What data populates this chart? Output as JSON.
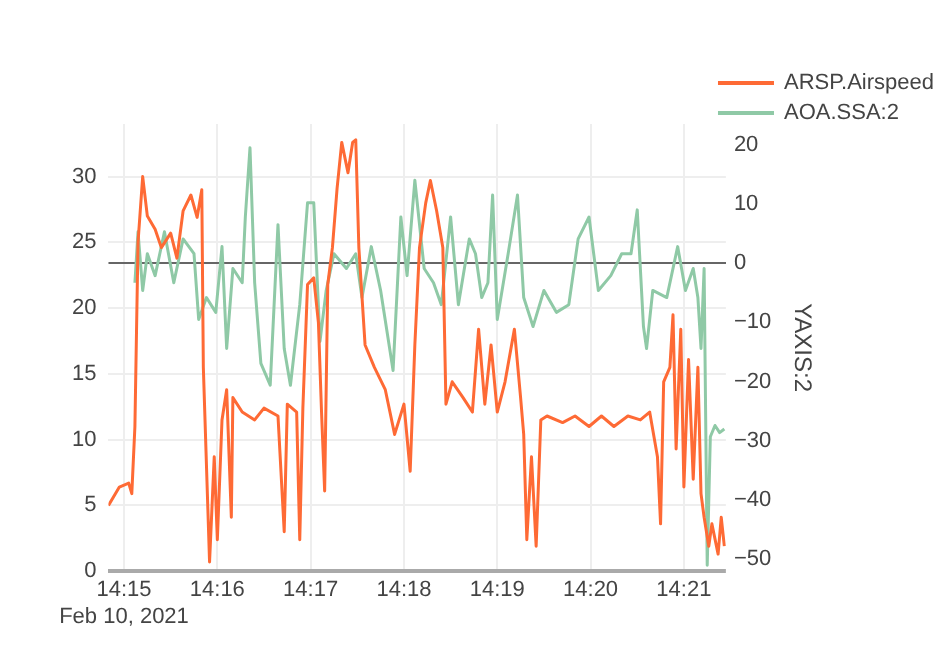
{
  "chart_data": {
    "type": "line",
    "y2label": "YAXIS:2",
    "xlim": [
      "2021-02-10T14:14:50",
      "2021-02-10T14:21:27"
    ],
    "xticks": [
      {
        "value": "2021-02-10T14:15",
        "label": "14:15\nFeb 10, 2021"
      },
      {
        "value": "2021-02-10T14:16",
        "label": "14:16"
      },
      {
        "value": "2021-02-10T14:17",
        "label": "14:17"
      },
      {
        "value": "2021-02-10T14:18",
        "label": "14:18"
      },
      {
        "value": "2021-02-10T14:19",
        "label": "14:19"
      },
      {
        "value": "2021-02-10T14:20",
        "label": "14:20"
      },
      {
        "value": "2021-02-10T14:21",
        "label": "14:21"
      }
    ],
    "ylim": [
      0,
      34
    ],
    "yticks": [
      0,
      5,
      10,
      15,
      20,
      25,
      30
    ],
    "y2lim": [
      -52,
      23.5
    ],
    "y2ticks": [
      -50,
      -40,
      -30,
      -20,
      -10,
      0,
      10,
      20
    ],
    "grid": true,
    "legend": "top right",
    "marker": "none",
    "line_style": "solid",
    "series": [
      {
        "name": "ARSP.Airspeed",
        "color": "#fe6a35",
        "x": [
          "2021-02-10T14:14:50",
          "2021-02-10T14:14:57",
          "2021-02-10T14:15:03",
          "2021-02-10T14:15:05",
          "2021-02-10T14:15:07",
          "2021-02-10T14:15:09",
          "2021-02-10T14:15:12",
          "2021-02-10T14:15:15",
          "2021-02-10T14:15:20",
          "2021-02-10T14:15:24",
          "2021-02-10T14:15:30",
          "2021-02-10T14:15:34",
          "2021-02-10T14:15:38",
          "2021-02-10T14:15:43",
          "2021-02-10T14:15:47",
          "2021-02-10T14:15:50",
          "2021-02-10T14:15:51",
          "2021-02-10T14:15:55",
          "2021-02-10T14:15:58",
          "2021-02-10T14:16:00",
          "2021-02-10T14:16:03",
          "2021-02-10T14:16:06",
          "2021-02-10T14:16:09",
          "2021-02-10T14:16:10",
          "2021-02-10T14:16:16",
          "2021-02-10T14:16:24",
          "2021-02-10T14:16:30",
          "2021-02-10T14:16:39",
          "2021-02-10T14:16:43",
          "2021-02-10T14:16:45",
          "2021-02-10T14:16:51",
          "2021-02-10T14:16:53",
          "2021-02-10T14:16:55",
          "2021-02-10T14:16:58",
          "2021-02-10T14:17:02",
          "2021-02-10T14:17:05",
          "2021-02-10T14:17:07",
          "2021-02-10T14:17:09",
          "2021-02-10T14:17:11",
          "2021-02-10T14:17:14",
          "2021-02-10T14:17:17",
          "2021-02-10T14:17:20",
          "2021-02-10T14:17:24",
          "2021-02-10T14:17:27",
          "2021-02-10T14:17:29",
          "2021-02-10T14:17:31",
          "2021-02-10T14:17:35",
          "2021-02-10T14:17:41",
          "2021-02-10T14:17:48",
          "2021-02-10T14:17:54",
          "2021-02-10T14:18:00",
          "2021-02-10T14:18:04",
          "2021-02-10T14:18:07",
          "2021-02-10T14:18:10",
          "2021-02-10T14:18:14",
          "2021-02-10T14:18:17",
          "2021-02-10T14:18:21",
          "2021-02-10T14:18:25",
          "2021-02-10T14:18:27",
          "2021-02-10T14:18:31",
          "2021-02-10T14:18:38",
          "2021-02-10T14:18:44",
          "2021-02-10T14:18:48",
          "2021-02-10T14:18:52",
          "2021-02-10T14:18:56",
          "2021-02-10T14:19:00",
          "2021-02-10T14:19:05",
          "2021-02-10T14:19:11",
          "2021-02-10T14:19:15",
          "2021-02-10T14:19:17",
          "2021-02-10T14:19:19",
          "2021-02-10T14:19:22",
          "2021-02-10T14:19:25",
          "2021-02-10T14:19:28",
          "2021-02-10T14:19:32",
          "2021-02-10T14:19:42",
          "2021-02-10T14:19:50",
          "2021-02-10T14:19:59",
          "2021-02-10T14:20:07",
          "2021-02-10T14:20:15",
          "2021-02-10T14:20:24",
          "2021-02-10T14:20:32",
          "2021-02-10T14:20:38",
          "2021-02-10T14:20:43",
          "2021-02-10T14:20:45",
          "2021-02-10T14:20:47",
          "2021-02-10T14:20:51",
          "2021-02-10T14:20:53",
          "2021-02-10T14:20:55",
          "2021-02-10T14:20:58",
          "2021-02-10T14:21:00",
          "2021-02-10T14:21:03",
          "2021-02-10T14:21:06",
          "2021-02-10T14:21:09",
          "2021-02-10T14:21:11",
          "2021-02-10T14:21:13",
          "2021-02-10T14:21:16",
          "2021-02-10T14:21:18",
          "2021-02-10T14:21:22",
          "2021-02-10T14:21:24",
          "2021-02-10T14:21:26"
        ],
        "values": [
          5,
          6.4,
          6.7,
          5.9,
          11,
          25,
          30,
          27,
          26,
          24.6,
          25.7,
          23.8,
          27.4,
          28.6,
          26.9,
          29,
          15.5,
          0.7,
          8.7,
          2.4,
          11.5,
          13.8,
          4.1,
          13.2,
          12.1,
          11.5,
          12.4,
          11.8,
          3,
          12.7,
          12.1,
          2.4,
          12.4,
          21.8,
          22.3,
          18.9,
          12.1,
          6.1,
          21.8,
          24.6,
          29.1,
          32.6,
          30.3,
          32.6,
          32.8,
          24.6,
          17.2,
          15.5,
          13.8,
          10.4,
          12.7,
          7.6,
          17.2,
          24.6,
          28,
          29.7,
          27.4,
          24.6,
          12.7,
          14.4,
          13.2,
          12.1,
          18.4,
          12.7,
          17.2,
          12.1,
          14.4,
          18.4,
          13.2,
          10.4,
          2.4,
          8.7,
          1.9,
          11.5,
          11.8,
          11.3,
          11.8,
          11,
          11.8,
          11,
          11.8,
          11.5,
          12.1,
          8.7,
          3.6,
          14.4,
          15.5,
          19.5,
          9.3,
          18.4,
          6.4,
          16.1,
          7,
          15.5,
          5.9,
          4.1,
          1.9,
          3.6,
          1.3,
          4.1,
          1.9
        ]
      },
      {
        "name": "AOA.SSA:2",
        "color": "#8fc9a6",
        "axis": "y2",
        "x": [
          "2021-02-10T14:15:07",
          "2021-02-10T14:15:09",
          "2021-02-10T14:15:12",
          "2021-02-10T14:15:15",
          "2021-02-10T14:15:20",
          "2021-02-10T14:15:26",
          "2021-02-10T14:15:32",
          "2021-02-10T14:15:38",
          "2021-02-10T14:15:45",
          "2021-02-10T14:15:48",
          "2021-02-10T14:15:53",
          "2021-02-10T14:15:59",
          "2021-02-10T14:16:03",
          "2021-02-10T14:16:06",
          "2021-02-10T14:16:10",
          "2021-02-10T14:16:16",
          "2021-02-10T14:16:18",
          "2021-02-10T14:16:21",
          "2021-02-10T14:16:24",
          "2021-02-10T14:16:28",
          "2021-02-10T14:16:34",
          "2021-02-10T14:16:39",
          "2021-02-10T14:16:43",
          "2021-02-10T14:16:47",
          "2021-02-10T14:16:53",
          "2021-02-10T14:16:58",
          "2021-02-10T14:17:02",
          "2021-02-10T14:17:06",
          "2021-02-10T14:17:10",
          "2021-02-10T14:17:15",
          "2021-02-10T14:17:23",
          "2021-02-10T14:17:29",
          "2021-02-10T14:17:33",
          "2021-02-10T14:17:39",
          "2021-02-10T14:17:45",
          "2021-02-10T14:17:53",
          "2021-02-10T14:17:58",
          "2021-02-10T14:18:02",
          "2021-02-10T14:18:07",
          "2021-02-10T14:18:13",
          "2021-02-10T14:18:19",
          "2021-02-10T14:18:24",
          "2021-02-10T14:18:30",
          "2021-02-10T14:18:35",
          "2021-02-10T14:18:42",
          "2021-02-10T14:18:46",
          "2021-02-10T14:18:50",
          "2021-02-10T14:18:54",
          "2021-02-10T14:18:57",
          "2021-02-10T14:19:00",
          "2021-02-10T14:19:07",
          "2021-02-10T14:19:13",
          "2021-02-10T14:19:17",
          "2021-02-10T14:19:23",
          "2021-02-10T14:19:30",
          "2021-02-10T14:19:38",
          "2021-02-10T14:19:46",
          "2021-02-10T14:19:52",
          "2021-02-10T14:19:59",
          "2021-02-10T14:20:05",
          "2021-02-10T14:20:13",
          "2021-02-10T14:20:20",
          "2021-02-10T14:20:26",
          "2021-02-10T14:20:30",
          "2021-02-10T14:20:34",
          "2021-02-10T14:20:36",
          "2021-02-10T14:20:40",
          "2021-02-10T14:20:49",
          "2021-02-10T14:20:56",
          "2021-02-10T14:21:01",
          "2021-02-10T14:21:06",
          "2021-02-10T14:21:09",
          "2021-02-10T14:21:11",
          "2021-02-10T14:21:13",
          "2021-02-10T14:21:15",
          "2021-02-10T14:21:17",
          "2021-02-10T14:21:20",
          "2021-02-10T14:21:23",
          "2021-02-10T14:21:26"
        ],
        "values": [
          -3.3,
          5.3,
          -4.6,
          1.6,
          -2.1,
          5.3,
          -3.3,
          4.1,
          1.6,
          -9.5,
          -5.8,
          -8.3,
          2.8,
          -14.4,
          -0.9,
          -3.3,
          7.8,
          19.5,
          -3.3,
          -16.9,
          -20.6,
          6.5,
          -14.4,
          -20.6,
          -7,
          10.2,
          10.2,
          -13.2,
          -4.6,
          1.6,
          -0.9,
          1.6,
          -5.8,
          2.8,
          -4.6,
          -18.1,
          7.8,
          -2.1,
          14,
          -0.9,
          -3.3,
          -7,
          7.8,
          -7,
          4.1,
          1.6,
          -5.8,
          -3.3,
          11.5,
          -9.5,
          1.6,
          11.5,
          -5.8,
          -10.7,
          -4.6,
          -8.3,
          -7,
          4.1,
          7.8,
          -4.6,
          -2.1,
          1.6,
          1.6,
          9,
          -10.7,
          -14.4,
          -4.6,
          -5.8,
          2.8,
          -4.6,
          -0.9,
          -5.8,
          -14.4,
          -0.9,
          -51,
          -29.3,
          -27.4,
          -28.6,
          -28
        ]
      }
    ]
  }
}
